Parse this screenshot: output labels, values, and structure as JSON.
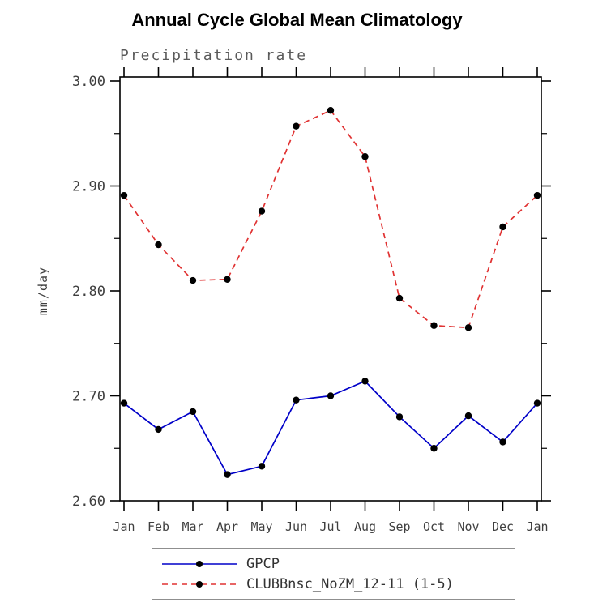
{
  "chart_data": {
    "type": "line",
    "title": "Annual Cycle Global Mean Climatology",
    "subtitle": "Precipitation rate",
    "ylabel": "mm/day",
    "xlabel": "",
    "x_tick_labels": [
      "Jan",
      "Feb",
      "Mar",
      "Apr",
      "May",
      "Jun",
      "Jul",
      "Aug",
      "Sep",
      "Oct",
      "Nov",
      "Dec",
      "Jan"
    ],
    "y_ticks": [
      2.6,
      2.7,
      2.8,
      2.9,
      3.0
    ],
    "y_tick_labels": [
      "2.60",
      "2.70",
      "2.80",
      "2.90",
      "3.00"
    ],
    "ylim": [
      2.6,
      3.0
    ],
    "grid": false,
    "legend_position": "bottom-outside",
    "marker_color": "#000000",
    "series": [
      {
        "name": "GPCP",
        "color": "#0000c8",
        "dash": "solid",
        "marker": "black-dot",
        "values": [
          2.693,
          2.668,
          2.685,
          2.625,
          2.633,
          2.696,
          2.7,
          2.714,
          2.68,
          2.65,
          2.681,
          2.656,
          2.693
        ]
      },
      {
        "name": "CLUBBnsc_NoZM_12-11 (1-5)",
        "color": "#e03232",
        "dash": "dashed",
        "marker": "black-dot",
        "values": [
          2.891,
          2.844,
          2.81,
          2.811,
          2.876,
          2.957,
          2.972,
          2.928,
          2.793,
          2.767,
          2.765,
          2.861,
          2.891
        ]
      }
    ]
  }
}
